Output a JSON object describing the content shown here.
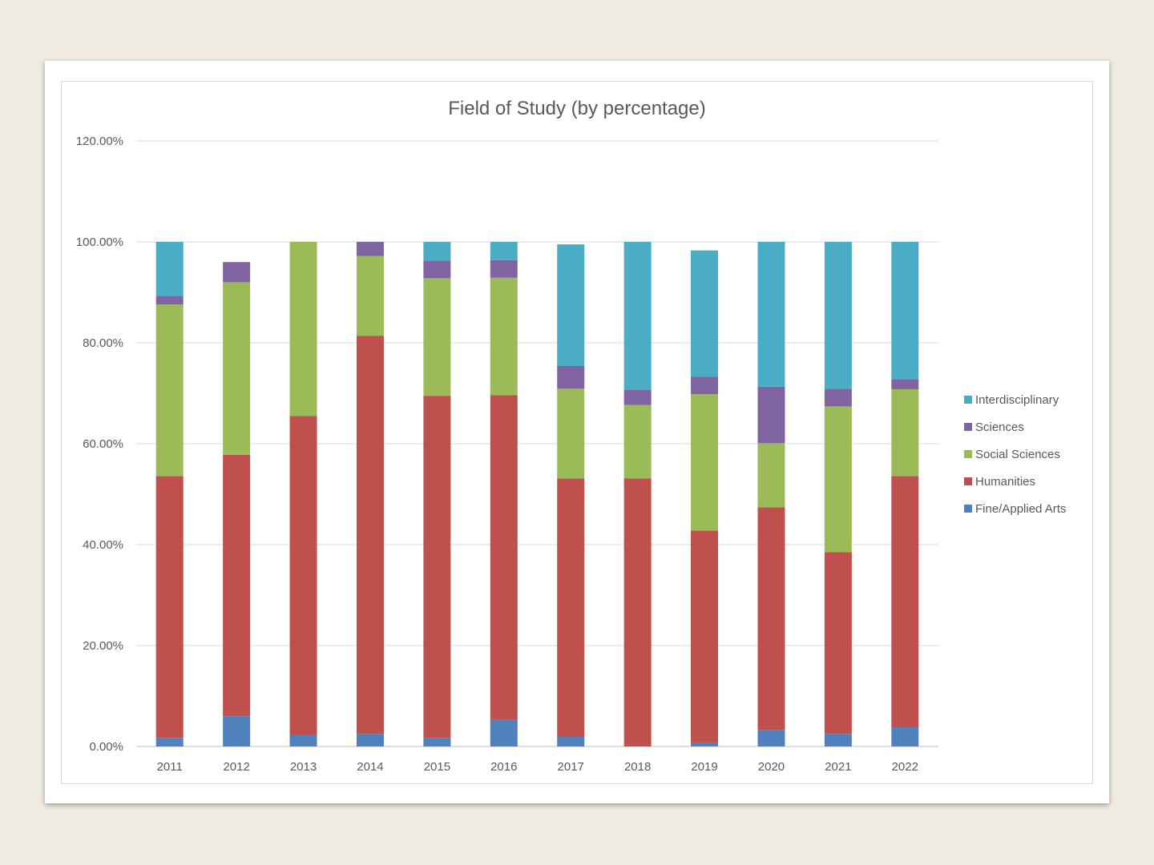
{
  "chart_data": {
    "type": "bar",
    "stacked": true,
    "title": "Field of Study (by percentage)",
    "xlabel": "",
    "ylabel": "",
    "ylim": [
      0,
      1.2
    ],
    "y_tick_values": [
      0,
      0.2,
      0.4,
      0.6,
      0.8,
      1.0,
      1.2
    ],
    "y_tick_labels": [
      "0.00%",
      "20.00%",
      "40.00%",
      "60.00%",
      "80.00%",
      "100.00%",
      "120.00%"
    ],
    "grid": true,
    "legend_position": "right",
    "categories": [
      "2011",
      "2012",
      "2013",
      "2014",
      "2015",
      "2016",
      "2017",
      "2018",
      "2019",
      "2020",
      "2021",
      "2022"
    ],
    "series": [
      {
        "name": "Fine/Applied Arts",
        "color": "#4f81bd",
        "values": [
          0.017,
          0.06,
          0.023,
          0.025,
          0.017,
          0.053,
          0.019,
          0.0,
          0.008,
          0.033,
          0.025,
          0.038
        ]
      },
      {
        "name": "Humanities",
        "color": "#c0504d",
        "values": [
          0.519,
          0.518,
          0.632,
          0.789,
          0.678,
          0.643,
          0.512,
          0.531,
          0.42,
          0.441,
          0.36,
          0.498
        ]
      },
      {
        "name": "Social Sciences",
        "color": "#9bbb59",
        "values": [
          0.34,
          0.342,
          0.345,
          0.158,
          0.233,
          0.233,
          0.178,
          0.146,
          0.27,
          0.127,
          0.289,
          0.172
        ]
      },
      {
        "name": "Sciences",
        "color": "#8064a2",
        "values": [
          0.017,
          0.04,
          0.0,
          0.028,
          0.035,
          0.035,
          0.045,
          0.03,
          0.035,
          0.112,
          0.035,
          0.02
        ]
      },
      {
        "name": "Interdisciplinary",
        "color": "#4bacc6",
        "values": [
          0.107,
          0.0,
          0.0,
          0.0,
          0.037,
          0.036,
          0.241,
          0.293,
          0.25,
          0.287,
          0.291,
          0.272
        ]
      }
    ]
  }
}
